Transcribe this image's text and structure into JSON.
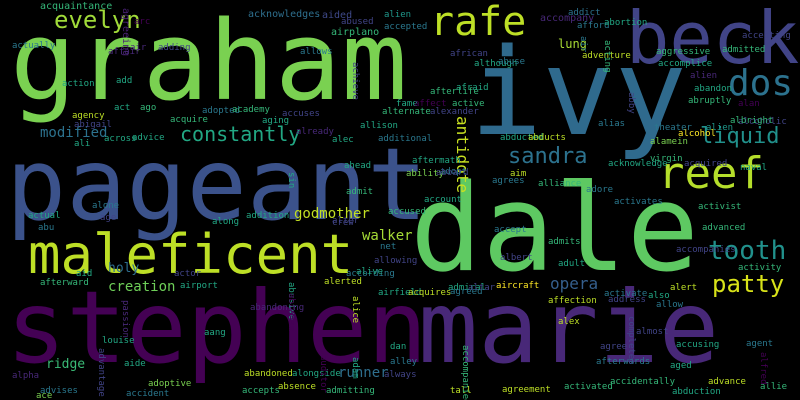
{
  "colors": {
    "background": "#000000",
    "palette": [
      "#7ad151",
      "#2a788e",
      "#440154",
      "#bddf26",
      "#22a884",
      "#414487",
      "#3b528b",
      "#5ec962",
      "#482878",
      "#1f9e89",
      "#fde725"
    ]
  },
  "words": [
    {
      "text": "graham",
      "color": "#7ad151"
    },
    {
      "text": "ivy",
      "color": "#2f6a8d"
    },
    {
      "text": "dale",
      "color": "#5ec962"
    },
    {
      "text": "pageant",
      "color": "#3b528b"
    },
    {
      "text": "stephen",
      "color": "#440154"
    },
    {
      "text": "marie",
      "color": "#482878"
    },
    {
      "text": "becky",
      "color": "#414487"
    },
    {
      "text": "maleficent",
      "color": "#bddf26"
    },
    {
      "text": "rafe",
      "color": "#bddf26"
    },
    {
      "text": "reef",
      "color": "#b5de2b"
    },
    {
      "text": "dos",
      "color": "#2c728e"
    },
    {
      "text": "evelyn",
      "color": "#a0da39"
    },
    {
      "text": "sandra",
      "color": "#2c728e"
    },
    {
      "text": "liquid",
      "color": "#21918c"
    },
    {
      "text": "tooth",
      "color": "#21918c"
    },
    {
      "text": "patty",
      "color": "#d8e219"
    },
    {
      "text": "constantly",
      "color": "#22a884"
    },
    {
      "text": "godmother",
      "color": "#c2df23"
    },
    {
      "text": "antidote",
      "color": "#c8e020"
    },
    {
      "text": "opera",
      "color": "#355f8d"
    },
    {
      "text": "ridge",
      "color": "#3aba76"
    },
    {
      "text": "walker",
      "color": "#a5db36"
    },
    {
      "text": "holy",
      "color": "#2e6e8e"
    },
    {
      "text": "runner",
      "color": "#2e6f8e"
    },
    {
      "text": "creation",
      "color": "#6ece58"
    },
    {
      "text": "modified",
      "color": "#2c728e"
    },
    {
      "text": "lung",
      "color": "#a8db34"
    },
    {
      "text": "acquaintance",
      "color": "#35b779"
    },
    {
      "text": "agreeing",
      "color": "#482173"
    },
    {
      "text": "acknowledges",
      "color": "#2e6f8e"
    },
    {
      "text": "aided",
      "color": "#3e4989"
    },
    {
      "text": "airplano",
      "color": "#35b779"
    },
    {
      "text": "alien",
      "color": "#1f988b"
    },
    {
      "text": "accepted",
      "color": "#2a788e"
    },
    {
      "text": "abused",
      "color": "#414487"
    },
    {
      "text": "accompany",
      "color": "#482878"
    },
    {
      "text": "addict",
      "color": "#2c728e"
    },
    {
      "text": "afford",
      "color": "#2a788e"
    },
    {
      "text": "abortion",
      "color": "#22a884"
    },
    {
      "text": "accepting",
      "color": "#414487"
    },
    {
      "text": "admitted",
      "color": "#35b779"
    },
    {
      "text": "aggressive",
      "color": "#35b779"
    },
    {
      "text": "accomplice",
      "color": "#22a884"
    },
    {
      "text": "alien",
      "color": "#482878"
    },
    {
      "text": "abandon",
      "color": "#22a884"
    },
    {
      "text": "abruptly",
      "color": "#35b779"
    },
    {
      "text": "alan",
      "color": "#440154"
    },
    {
      "text": "alcoholic",
      "color": "#414487"
    },
    {
      "text": "albright",
      "color": "#35b779"
    },
    {
      "text": "alien",
      "color": "#1f988b"
    },
    {
      "text": "alcohol",
      "color": "#fde725"
    },
    {
      "text": "alamein",
      "color": "#7ad151"
    },
    {
      "text": "theater",
      "color": "#2a788e"
    },
    {
      "text": "acknowledge",
      "color": "#22a884"
    },
    {
      "text": "acquired",
      "color": "#414487"
    },
    {
      "text": "virgin",
      "color": "#35b779"
    },
    {
      "text": "alias",
      "color": "#2a788e"
    },
    {
      "text": "actually",
      "color": "#2a788e"
    },
    {
      "text": "adding",
      "color": "#414487"
    },
    {
      "text": "affair",
      "color": "#482878"
    },
    {
      "text": "air",
      "color": "#482878"
    },
    {
      "text": "action",
      "color": "#22a884"
    },
    {
      "text": "add",
      "color": "#22a884"
    },
    {
      "text": "agency",
      "color": "#bddf26"
    },
    {
      "text": "act",
      "color": "#22a884"
    },
    {
      "text": "ago",
      "color": "#35b779"
    },
    {
      "text": "abigail",
      "color": "#414487"
    },
    {
      "text": "adopted",
      "color": "#2a788e"
    },
    {
      "text": "academy",
      "color": "#35b779"
    },
    {
      "text": "aging",
      "color": "#22a884"
    },
    {
      "text": "accuses",
      "color": "#414487"
    },
    {
      "text": "acquire",
      "color": "#35b779"
    },
    {
      "text": "across",
      "color": "#22a884"
    },
    {
      "text": "advice",
      "color": "#22a884"
    },
    {
      "text": "ali",
      "color": "#22a884"
    },
    {
      "text": "already",
      "color": "#482878"
    },
    {
      "text": "alec",
      "color": "#22a884"
    },
    {
      "text": "allison",
      "color": "#22a884"
    },
    {
      "text": "allows",
      "color": "#2a788e"
    },
    {
      "text": "afterlife",
      "color": "#35b779"
    },
    {
      "text": "african",
      "color": "#414487"
    },
    {
      "text": "although",
      "color": "#22a884"
    },
    {
      "text": "abuse",
      "color": "#2a788e"
    },
    {
      "text": "adopt",
      "color": "#2a788e"
    },
    {
      "text": "fame",
      "color": "#22a884"
    },
    {
      "text": "alternate",
      "color": "#35b779"
    },
    {
      "text": "alexander",
      "color": "#414487"
    },
    {
      "text": "affect",
      "color": "#440154"
    },
    {
      "text": "afraid",
      "color": "#22a884"
    },
    {
      "text": "active",
      "color": "#35b779"
    },
    {
      "text": "abducted",
      "color": "#22a884"
    },
    {
      "text": "abducts",
      "color": "#bddf26"
    },
    {
      "text": "adventure",
      "color": "#bddf26"
    },
    {
      "text": "additional",
      "color": "#2a788e"
    },
    {
      "text": "aftermath",
      "color": "#22a884"
    },
    {
      "text": "ability",
      "color": "#7ad151"
    },
    {
      "text": "aboard",
      "color": "#414487"
    },
    {
      "text": "aim",
      "color": "#bddf26"
    },
    {
      "text": "agrees",
      "color": "#2a788e"
    },
    {
      "text": "alliance",
      "color": "#35b779"
    },
    {
      "text": "ahead",
      "color": "#22a884"
    },
    {
      "text": "admit",
      "color": "#35b779"
    },
    {
      "text": "alone",
      "color": "#2a788e"
    },
    {
      "text": "actual",
      "color": "#22a884"
    },
    {
      "text": "abu",
      "color": "#2a788e"
    },
    {
      "text": "along",
      "color": "#22a884"
    },
    {
      "text": "addition",
      "color": "#22a884"
    },
    {
      "text": "accused",
      "color": "#35b779"
    },
    {
      "text": "account",
      "color": "#22a884"
    },
    {
      "text": "accept",
      "color": "#2a788e"
    },
    {
      "text": "activist",
      "color": "#35b779"
    },
    {
      "text": "advanced",
      "color": "#35b779"
    },
    {
      "text": "age",
      "color": "#414487"
    },
    {
      "text": "naval",
      "color": "#22a884"
    },
    {
      "text": "activates",
      "color": "#2a788e"
    },
    {
      "text": "accompanies",
      "color": "#414487"
    },
    {
      "text": "activity",
      "color": "#35b779"
    },
    {
      "text": "aid",
      "color": "#22a884"
    },
    {
      "text": "actor",
      "color": "#414487"
    },
    {
      "text": "crew",
      "color": "#414487"
    },
    {
      "text": "alter",
      "color": "#414487"
    },
    {
      "text": "net",
      "color": "#2a788e"
    },
    {
      "text": "allowing",
      "color": "#414487"
    },
    {
      "text": "admits",
      "color": "#35b779"
    },
    {
      "text": "albert",
      "color": "#414487"
    },
    {
      "text": "adult",
      "color": "#22a884"
    },
    {
      "text": "afterward",
      "color": "#35b779"
    },
    {
      "text": "abandoning",
      "color": "#482878"
    },
    {
      "text": "abusive",
      "color": "#22a884"
    },
    {
      "text": "alerted",
      "color": "#bddf26"
    },
    {
      "text": "according",
      "color": "#2a788e"
    },
    {
      "text": "alive",
      "color": "#22a884"
    },
    {
      "text": "airport",
      "color": "#22a884"
    },
    {
      "text": "abraham",
      "color": "#440154"
    },
    {
      "text": "alice",
      "color": "#bddf26"
    },
    {
      "text": "airfield",
      "color": "#22a884"
    },
    {
      "text": "acquires",
      "color": "#bddf26"
    },
    {
      "text": "admiral",
      "color": "#22a884"
    },
    {
      "text": "agreed",
      "color": "#2a788e"
    },
    {
      "text": "altar",
      "color": "#414487"
    },
    {
      "text": "aircraft",
      "color": "#fde725"
    },
    {
      "text": "affection",
      "color": "#bddf26"
    },
    {
      "text": "address",
      "color": "#414487"
    },
    {
      "text": "activate",
      "color": "#2a788e"
    },
    {
      "text": "also",
      "color": "#22a884"
    },
    {
      "text": "alert",
      "color": "#bddf26"
    },
    {
      "text": "allow",
      "color": "#2a788e"
    },
    {
      "text": "aang",
      "color": "#22a884"
    },
    {
      "text": "dan",
      "color": "#22a884"
    },
    {
      "text": "alex",
      "color": "#bddf26"
    },
    {
      "text": "almost",
      "color": "#414487"
    },
    {
      "text": "louise",
      "color": "#22a884"
    },
    {
      "text": "accusing",
      "color": "#22a884"
    },
    {
      "text": "agent",
      "color": "#2a788e"
    },
    {
      "text": "alpha",
      "color": "#482878"
    },
    {
      "text": "aide",
      "color": "#22a884"
    },
    {
      "text": "adam",
      "color": "#22a884"
    },
    {
      "text": "alley",
      "color": "#2a788e"
    },
    {
      "text": "agree",
      "color": "#414487"
    },
    {
      "text": "abandoned",
      "color": "#bddf26"
    },
    {
      "text": "alongside",
      "color": "#22a884"
    },
    {
      "text": "always",
      "color": "#414487"
    },
    {
      "text": "afterwards",
      "color": "#2a788e"
    },
    {
      "text": "aged",
      "color": "#22a884"
    },
    {
      "text": "adoptive",
      "color": "#7ad151"
    },
    {
      "text": "absence",
      "color": "#bddf26"
    },
    {
      "text": "tall",
      "color": "#bddf26"
    },
    {
      "text": "activated",
      "color": "#35b779"
    },
    {
      "text": "accidentally",
      "color": "#35b779"
    },
    {
      "text": "advance",
      "color": "#bddf26"
    },
    {
      "text": "advises",
      "color": "#2a788e"
    },
    {
      "text": "accident",
      "color": "#2a788e"
    },
    {
      "text": "accepts",
      "color": "#35b779"
    },
    {
      "text": "admitting",
      "color": "#35b779"
    },
    {
      "text": "agreement",
      "color": "#bddf26"
    },
    {
      "text": "abduction",
      "color": "#22a884"
    },
    {
      "text": "allie",
      "color": "#35b779"
    },
    {
      "text": "ace",
      "color": "#7ad151"
    },
    {
      "text": "abby",
      "color": "#414487"
    },
    {
      "text": "adore",
      "color": "#2a788e"
    },
    {
      "text": "sin",
      "color": "#22a884"
    },
    {
      "text": "arc",
      "color": "#440154"
    },
    {
      "text": "air",
      "color": "#2a788e"
    },
    {
      "text": "acting",
      "color": "#35b779"
    },
    {
      "text": "achieve",
      "color": "#414487"
    },
    {
      "text": "accompanied",
      "color": "#35b779"
    },
    {
      "text": "advantage",
      "color": "#414487"
    },
    {
      "text": "completes",
      "color": "#414487"
    },
    {
      "text": "alfred",
      "color": "#440154"
    },
    {
      "text": "passion",
      "color": "#482878"
    },
    {
      "text": "auditor",
      "color": "#440154"
    }
  ]
}
